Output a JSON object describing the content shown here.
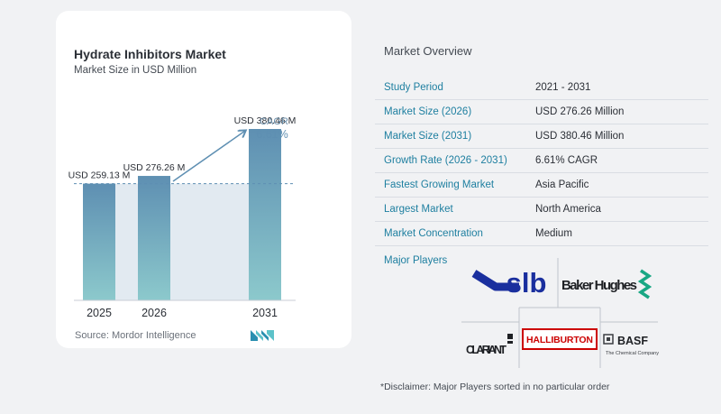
{
  "chart": {
    "title": "Hydrate Inhibitors Market",
    "subtitle": "Market Size in USD Million",
    "source": "Source:  Mordor Intelligence",
    "cagr_label": "CAGR",
    "cagr_value": "6.61%"
  },
  "chart_data": {
    "type": "bar",
    "title": "Hydrate Inhibitors Market",
    "subtitle": "Market Size in USD Million",
    "categories": [
      "2025",
      "2026",
      "2031"
    ],
    "values": [
      259.13,
      276.26,
      380.46
    ],
    "data_labels": [
      "USD 259.13 M",
      "USD 276.26 M",
      "USD 380.46 M"
    ],
    "unit": "USD Million",
    "annotation": {
      "label": "CAGR",
      "value": "6.61%"
    },
    "grid": false,
    "colors": {
      "bar_top": "#5e8fb2",
      "bar_bottom": "#8cc9cc",
      "band": "#e2eaf1",
      "arrow": "#5e8fb2"
    }
  },
  "overview": {
    "title": "Market Overview",
    "rows": [
      {
        "key": "Study Period",
        "value": "2021 - 2031"
      },
      {
        "key": "Market Size (2026)",
        "value": "USD 276.26 Million"
      },
      {
        "key": "Market Size (2031)",
        "value": "USD 380.46 Million"
      },
      {
        "key": "Growth Rate (2026 - 2031)",
        "value": "6.61% CAGR"
      },
      {
        "key": "Fastest Growing Market",
        "value": "Asia Pacific"
      },
      {
        "key": "Largest Market",
        "value": "North America"
      },
      {
        "key": "Market Concentration",
        "value": "Medium"
      }
    ],
    "accent": "#1e7fa0"
  },
  "players": {
    "label": "Major Players",
    "logos": {
      "slb": "slb",
      "baker": "Baker Hughes",
      "clariant": "CLARIANT",
      "halliburton": "HALLIBURTON",
      "basf": "BASF",
      "basf_tag": "The Chemical Company"
    }
  },
  "disclaimer": "*Disclaimer: Major Players sorted in no particular order"
}
